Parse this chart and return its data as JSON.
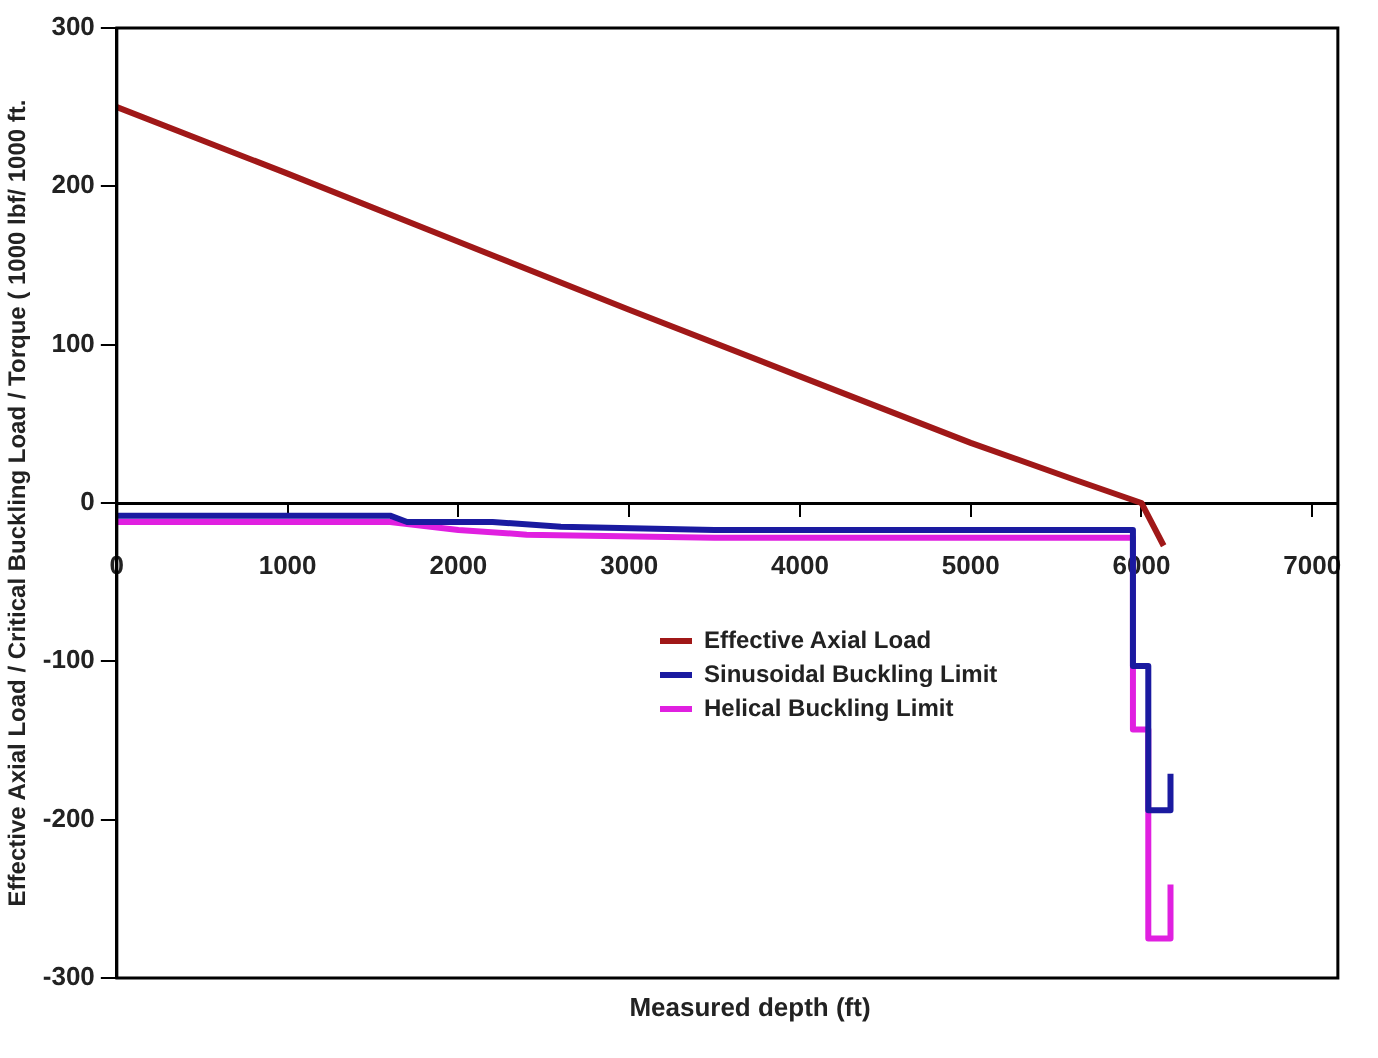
{
  "chart_data": {
    "type": "line",
    "xlabel": "Measured depth (ft)",
    "ylabel": "Effective Axial Load / Critical Buckling Load / Torque ( 1000 lbf/ 1000 ft.",
    "xlim": [
      0,
      7150
    ],
    "xticks": [
      0,
      1000,
      2000,
      3000,
      4000,
      5000,
      6000,
      7000
    ],
    "ylim": [
      -300,
      300
    ],
    "yticks": [
      -300,
      -200,
      -100,
      0,
      100,
      200,
      300
    ],
    "grid": false,
    "legend": "right",
    "marker": "none",
    "line_style": "solid",
    "series": [
      {
        "name": "Effective Axial Load",
        "color": "#a01818",
        "x": [
          0,
          1000,
          2000,
          3000,
          4000,
          5000,
          5600,
          6000,
          6130
        ],
        "values": [
          250,
          208,
          165,
          122,
          80,
          38,
          15,
          0,
          -27
        ]
      },
      {
        "name": "Sinusoidal Buckling Limit",
        "color": "#1a1aa0",
        "x": [
          0,
          1600,
          1700,
          2200,
          2600,
          3500,
          5900,
          5950,
          5950,
          6040,
          6040,
          6170,
          6170
        ],
        "values": [
          -8,
          -8,
          -12,
          -12,
          -15,
          -17,
          -17,
          -17,
          -103,
          -103,
          -194,
          -194,
          -171
        ]
      },
      {
        "name": "Helical Buckling Limit",
        "color": "#e020e0",
        "x": [
          0,
          1600,
          2000,
          2400,
          3500,
          5950,
          5950,
          6040,
          6040,
          6170,
          6170
        ],
        "values": [
          -12,
          -12,
          -17,
          -20,
          -22,
          -22,
          -143,
          -143,
          -275,
          -275,
          -241
        ]
      }
    ]
  }
}
